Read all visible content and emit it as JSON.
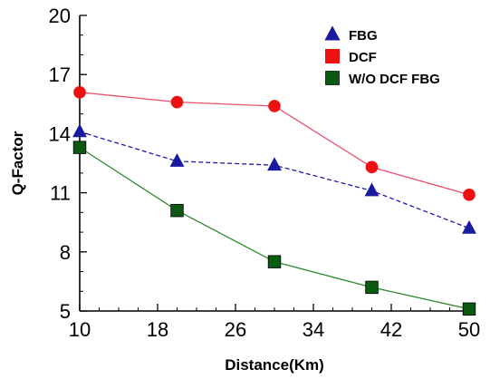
{
  "chart_data": {
    "type": "line",
    "title": "",
    "xlabel": "Distance(Km)",
    "ylabel": "Q-Factor",
    "xlim": [
      10,
      50
    ],
    "ylim": [
      5,
      20
    ],
    "xticks": [
      10,
      18,
      26,
      34,
      42,
      50
    ],
    "yticks": [
      5,
      8,
      11,
      14,
      17,
      20
    ],
    "x_minor_step": 2,
    "y_minor_step": 1,
    "grid": false,
    "legend_position": "top-right",
    "series": [
      {
        "name": "FBG",
        "marker": "triangle",
        "line_style": "dashed",
        "line_color": "#1a1ab0",
        "marker_color": "#1a1aa0",
        "x": [
          10,
          20,
          30,
          40,
          50
        ],
        "y": [
          14.1,
          12.6,
          12.4,
          11.1,
          9.2
        ]
      },
      {
        "name": "DCF",
        "marker": "circle",
        "line_style": "solid",
        "line_color": "#e8506e",
        "marker_color": "#ee1111",
        "x": [
          10,
          20,
          30,
          40,
          50
        ],
        "y": [
          16.1,
          15.6,
          15.4,
          12.3,
          10.9
        ]
      },
      {
        "name": "W/O DCF FBG",
        "marker": "square",
        "line_style": "solid",
        "line_color": "#2e8b2e",
        "marker_color": "#0b5a12",
        "x": [
          10,
          20,
          30,
          40,
          50
        ],
        "y": [
          13.3,
          10.1,
          7.5,
          6.2,
          5.1
        ]
      }
    ]
  }
}
